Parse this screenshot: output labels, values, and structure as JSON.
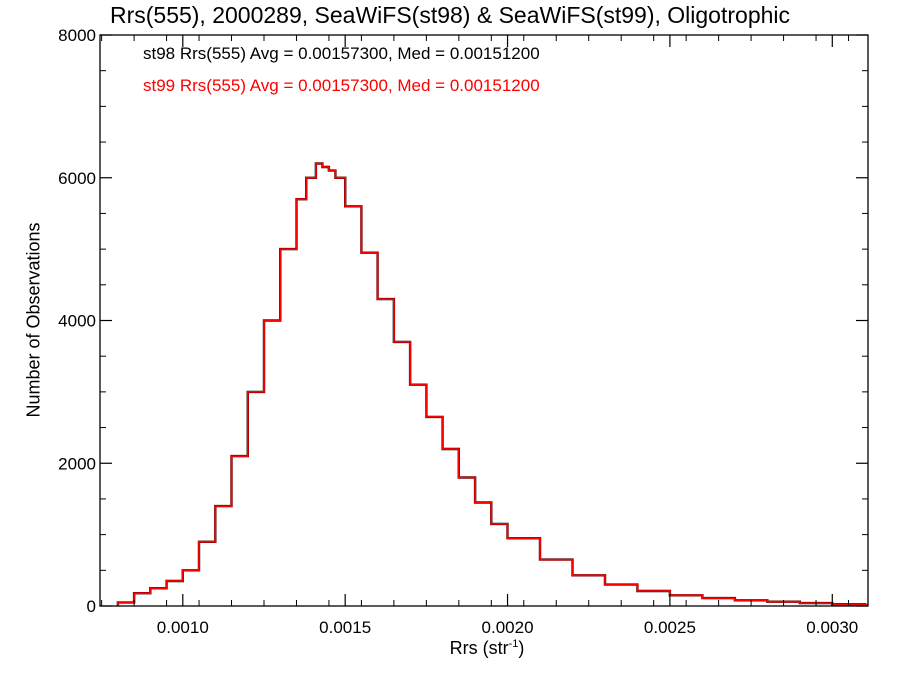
{
  "chart_data": {
    "type": "line",
    "step": true,
    "title": "Rrs(555), 2000289, SeaWiFS(st98) & SeaWiFS(st99), Oligotrophic",
    "xlabel_main": "Rrs (str",
    "xlabel_exp": "-1",
    "xlabel_tail": ")",
    "ylabel": "Number of Observations",
    "xlim": [
      0.000745,
      0.00311
    ],
    "ylim": [
      0,
      8000
    ],
    "xticks": [
      0.001,
      0.0015,
      0.002,
      0.0025,
      0.003
    ],
    "xtick_labels": [
      "0.0010",
      "0.0015",
      "0.0020",
      "0.0025",
      "0.0030"
    ],
    "yticks": [
      0,
      2000,
      4000,
      6000,
      8000
    ],
    "ytick_labels": [
      "0",
      "2000",
      "4000",
      "6000",
      "8000"
    ],
    "grid": false,
    "legend_placement": "top-left",
    "series": [
      {
        "name": "st98",
        "color": "#000000",
        "annotation": "st98 Rrs(555) Avg = 0.00157300, Med = 0.00151200",
        "x": [
          0.0008,
          0.00085,
          0.0009,
          0.00095,
          0.001,
          0.00105,
          0.0011,
          0.00115,
          0.0012,
          0.00125,
          0.0013,
          0.00135,
          0.00138,
          0.00141,
          0.00143,
          0.00145,
          0.00147,
          0.0015,
          0.00155,
          0.0016,
          0.00165,
          0.0017,
          0.00175,
          0.0018,
          0.00185,
          0.0019,
          0.00195,
          0.002,
          0.0021,
          0.0022,
          0.0023,
          0.0024,
          0.0025,
          0.0026,
          0.0027,
          0.0028,
          0.0029,
          0.003,
          0.0031
        ],
        "y": [
          50,
          180,
          250,
          350,
          500,
          900,
          1400,
          2100,
          3000,
          4000,
          5000,
          5700,
          6000,
          6200,
          6150,
          6100,
          6000,
          5600,
          4950,
          4300,
          3700,
          3100,
          2650,
          2200,
          1800,
          1450,
          1150,
          950,
          650,
          430,
          300,
          210,
          150,
          110,
          80,
          60,
          40,
          25,
          15
        ]
      },
      {
        "name": "st99",
        "color": "#ff0000",
        "annotation": "st99 Rrs(555) Avg = 0.00157300, Med = 0.00151200",
        "x": [
          0.0008,
          0.00085,
          0.0009,
          0.00095,
          0.001,
          0.00105,
          0.0011,
          0.00115,
          0.0012,
          0.00125,
          0.0013,
          0.00135,
          0.00138,
          0.00141,
          0.00143,
          0.00145,
          0.00147,
          0.0015,
          0.00155,
          0.0016,
          0.00165,
          0.0017,
          0.00175,
          0.0018,
          0.00185,
          0.0019,
          0.00195,
          0.002,
          0.0021,
          0.0022,
          0.0023,
          0.0024,
          0.0025,
          0.0026,
          0.0027,
          0.0028,
          0.0029,
          0.003,
          0.0031
        ],
        "y": [
          50,
          180,
          250,
          350,
          500,
          900,
          1400,
          2100,
          3000,
          4000,
          5000,
          5700,
          6000,
          6200,
          6150,
          6100,
          6000,
          5600,
          4950,
          4300,
          3700,
          3100,
          2650,
          2200,
          1800,
          1450,
          1150,
          950,
          650,
          430,
          300,
          210,
          150,
          110,
          80,
          60,
          40,
          25,
          15
        ]
      }
    ]
  }
}
